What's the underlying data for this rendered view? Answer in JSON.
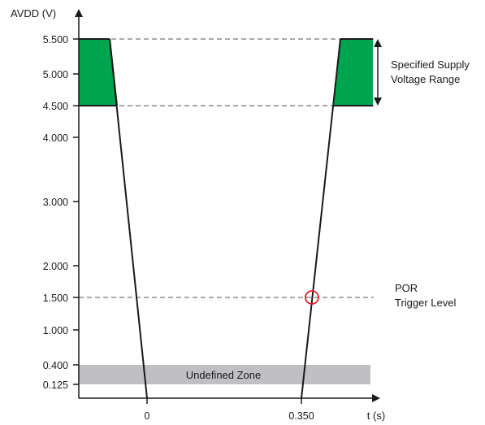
{
  "y_axis_label": "AVDD (V)",
  "x_axis_label": "t (s)",
  "y_ticks": [
    "5.500",
    "5.000",
    "4.500",
    "4.000",
    "3.000",
    "2.000",
    "1.500",
    "1.000",
    "0.400",
    "0.125"
  ],
  "x_ticks": [
    "0",
    "0.350"
  ],
  "zone_label": "Undefined Zone",
  "supply_range_label": [
    "Specified Supply",
    "Voltage Range"
  ],
  "por_label": [
    "POR",
    "Trigger Level"
  ],
  "colors": {
    "green_fill": "#00a64f",
    "undefined_zone": "#c0c0c4",
    "por_marker": "#e0202a",
    "axis": "#1a1a1a",
    "dashed": "#555555"
  }
}
